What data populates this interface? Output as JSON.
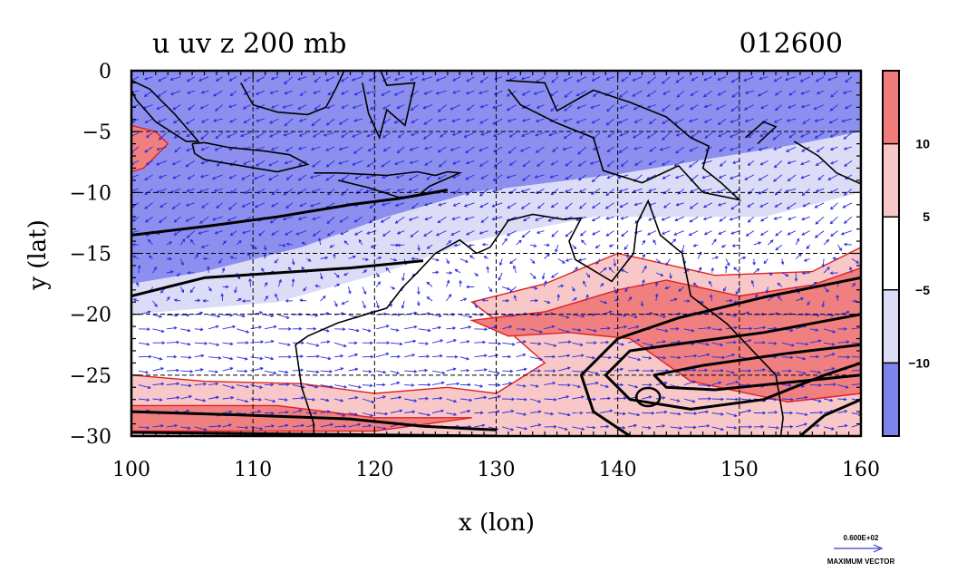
{
  "chart_data": {
    "type": "heatmap",
    "title_left": "u uv z 200 mb",
    "title_right": "012600",
    "xlabel": "x (lon)",
    "ylabel": "y (lat)",
    "xlim": [
      100,
      160
    ],
    "ylim": [
      -30,
      0
    ],
    "x_ticks": [
      "100",
      "110",
      "120",
      "130",
      "140",
      "150",
      "160"
    ],
    "x_tick_values": [
      100,
      110,
      120,
      130,
      140,
      150,
      160
    ],
    "y_ticks": [
      "0",
      "−5",
      "−10",
      "−15",
      "−20",
      "−25",
      "−30"
    ],
    "y_tick_values": [
      0,
      -5,
      -10,
      -15,
      -20,
      -25,
      -30
    ],
    "grid": true,
    "colorbar": {
      "placement": "right",
      "levels": [
        -15,
        -10,
        -5,
        5,
        10,
        15
      ],
      "tick_labels": [
        "10",
        "5",
        "−5",
        "−10"
      ],
      "tick_values": [
        10,
        5,
        -5,
        -10
      ],
      "colors": [
        "#7f83ec",
        "#dcdcf7",
        "#ffffff",
        "#f8c8c8",
        "#f07b7b"
      ]
    },
    "filled_contour_u": [
      {
        "level": "<= -10",
        "color": "#8c8fee",
        "region": [
          [
            100,
            0
          ],
          [
            160,
            0
          ],
          [
            160,
            -5
          ],
          [
            155,
            -6
          ],
          [
            140,
            -8.5
          ],
          [
            128,
            -10
          ],
          [
            121,
            -12
          ],
          [
            114,
            -14.5
          ],
          [
            106,
            -16.5
          ],
          [
            100,
            -17.5
          ]
        ]
      },
      {
        "level": "-10 to -5",
        "color": "#dcdcf7",
        "region": [
          [
            100,
            -17.5
          ],
          [
            106,
            -16.5
          ],
          [
            114,
            -14.5
          ],
          [
            121,
            -12
          ],
          [
            128,
            -10
          ],
          [
            140,
            -8.5
          ],
          [
            155,
            -6
          ],
          [
            160,
            -5
          ],
          [
            160,
            -10
          ],
          [
            152,
            -12
          ],
          [
            138,
            -12
          ],
          [
            128,
            -14
          ],
          [
            121,
            -16.5
          ],
          [
            112,
            -19
          ],
          [
            100,
            -20
          ]
        ]
      },
      {
        "level": "5 to 10",
        "color": "#f8c8c8",
        "region": [
          [
            100,
            -25
          ],
          [
            106,
            -25.5
          ],
          [
            114,
            -25.7
          ],
          [
            120,
            -26.5
          ],
          [
            126,
            -26
          ],
          [
            130,
            -26.5
          ],
          [
            134,
            -24
          ],
          [
            130,
            -20.5
          ],
          [
            128,
            -19
          ],
          [
            134,
            -17.5
          ],
          [
            140,
            -15
          ],
          [
            148,
            -16.8
          ],
          [
            156,
            -16.5
          ],
          [
            160,
            -14.5
          ],
          [
            160,
            -30
          ],
          [
            100,
            -30
          ]
        ]
      },
      {
        "level": ">= 10",
        "color": "#f08080",
        "region": [
          [
            100,
            -27.5
          ],
          [
            112,
            -27.5
          ],
          [
            120,
            -28.5
          ],
          [
            128,
            -28.5
          ],
          [
            120,
            -29.6
          ],
          [
            100,
            -29.6
          ]
        ]
      },
      {
        "level": ">= 10",
        "color": "#f08080",
        "region": [
          [
            128,
            -20.5
          ],
          [
            134,
            -19.8
          ],
          [
            140,
            -18
          ],
          [
            144,
            -17.2
          ],
          [
            150,
            -18.5
          ],
          [
            156,
            -17.6
          ],
          [
            160,
            -16.2
          ],
          [
            160,
            -26.5
          ],
          [
            154,
            -27.2
          ],
          [
            146,
            -25.5
          ],
          [
            141,
            -22
          ],
          [
            136,
            -21.5
          ],
          [
            131,
            -21.8
          ]
        ]
      },
      {
        "level": ">= 10",
        "color": "#f08080",
        "region": [
          [
            100,
            -4.5
          ],
          [
            102,
            -5
          ],
          [
            103,
            -6
          ],
          [
            101,
            -8
          ],
          [
            100,
            -8.3
          ]
        ]
      }
    ],
    "height_contours_z": [
      {
        "points": [
          [
            100,
            -13.5
          ],
          [
            106,
            -12.8
          ],
          [
            112,
            -12
          ],
          [
            118,
            -11
          ],
          [
            122,
            -10.5
          ],
          [
            126,
            -9.8
          ]
        ]
      },
      {
        "points": [
          [
            100,
            -18.5
          ],
          [
            106,
            -17
          ],
          [
            112,
            -16.6
          ],
          [
            118,
            -16.2
          ],
          [
            124,
            -15.6
          ]
        ]
      },
      {
        "points": [
          [
            100,
            -28
          ],
          [
            110,
            -28.3
          ],
          [
            118,
            -28.6
          ],
          [
            124,
            -29.2
          ],
          [
            130,
            -29.5
          ]
        ]
      },
      {
        "points": [
          [
            100,
            -29.7
          ],
          [
            120,
            -29.9
          ],
          [
            130,
            -30
          ]
        ]
      },
      {
        "points": [
          [
            160,
            -20
          ],
          [
            152,
            -21.5
          ],
          [
            146,
            -22.3
          ],
          [
            141,
            -23
          ],
          [
            139,
            -25
          ],
          [
            141,
            -27
          ],
          [
            146,
            -27.8
          ],
          [
            152,
            -27
          ],
          [
            157,
            -25
          ],
          [
            160,
            -24
          ]
        ]
      },
      {
        "points": [
          [
            160,
            -22.5
          ],
          [
            154,
            -23.2
          ],
          [
            147,
            -24.2
          ],
          [
            143,
            -25
          ],
          [
            144,
            -26
          ],
          [
            148,
            -26.2
          ],
          [
            154,
            -25.6
          ],
          [
            160,
            -25
          ]
        ]
      },
      {
        "points": [
          [
            160,
            -17
          ],
          [
            152,
            -18.6
          ],
          [
            145,
            -20.3
          ],
          [
            140,
            -22
          ],
          [
            137,
            -25
          ],
          [
            138,
            -28
          ],
          [
            141,
            -30
          ]
        ]
      },
      {
        "points": [
          [
            160,
            -27
          ],
          [
            157,
            -28.3
          ],
          [
            155,
            -30
          ]
        ]
      }
    ],
    "vector_field": {
      "label_value": "0.600E+02",
      "label_text": "MAXIMUM VECTOR"
    }
  }
}
